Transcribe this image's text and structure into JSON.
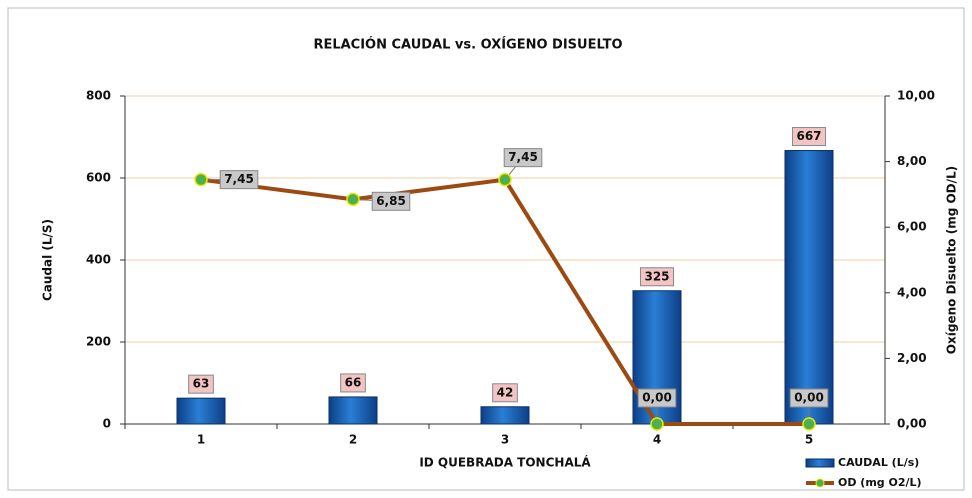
{
  "chart_data": {
    "type": "combo",
    "title": "RELACIÓN CAUDAL vs. OXÍGENO DISUELTO",
    "x_label": "ID QUEBRADA TONCHALÁ",
    "y_label": "Caudal (L/S)",
    "y2_label": "Oxígeno Disuelto (mg OD/L)",
    "categories": [
      "1",
      "2",
      "3",
      "4",
      "5"
    ],
    "series": [
      {
        "name": "CAUDAL (L/s)",
        "type": "bar",
        "color": "#1565c0",
        "values": [
          63,
          66,
          42,
          325,
          667
        ]
      },
      {
        "name": "OD (mg O2/L)",
        "type": "line",
        "axis": "y2",
        "color": "#9c4a12",
        "marker_color": "#4caf50",
        "values": [
          7.45,
          6.85,
          7.45,
          0,
          0
        ],
        "value_labels": [
          "7,45",
          "6,85",
          "7,45",
          "0,00",
          "0,00"
        ]
      }
    ],
    "ylim": [
      0,
      800
    ],
    "yticks": [
      0,
      200,
      400,
      600,
      800
    ],
    "y2lim": [
      0,
      10
    ],
    "y2ticks": [
      {
        "value": 0,
        "label": "0,00"
      },
      {
        "value": 2,
        "label": "2,00"
      },
      {
        "value": 4,
        "label": "4,00"
      },
      {
        "value": 6,
        "label": "6,00"
      },
      {
        "value": 8,
        "label": "8,00"
      },
      {
        "value": 10,
        "label": "10,00"
      }
    ],
    "grid": true,
    "legend": "bottom-right"
  }
}
